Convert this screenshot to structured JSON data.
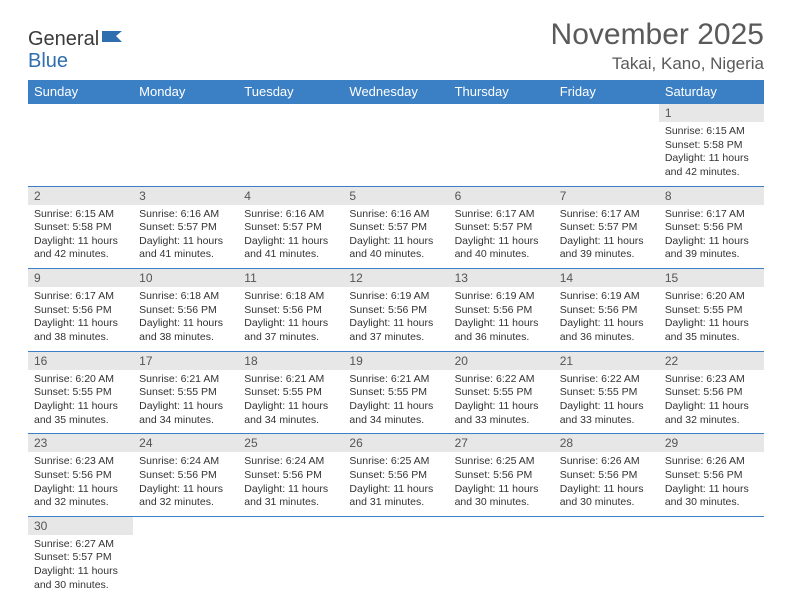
{
  "brand": {
    "part1": "General",
    "part2": "Blue"
  },
  "title": "November 2025",
  "location": "Takai, Kano, Nigeria",
  "colors": {
    "header_bg": "#3b7fc4",
    "header_text": "#ffffff",
    "daynum_bg": "#e7e7e7",
    "daynum_text": "#555555",
    "border": "#3b7fc4",
    "body_text": "#333333",
    "title_text": "#5a5a5a"
  },
  "weekdays": [
    "Sunday",
    "Monday",
    "Tuesday",
    "Wednesday",
    "Thursday",
    "Friday",
    "Saturday"
  ],
  "weeks": [
    [
      null,
      null,
      null,
      null,
      null,
      null,
      {
        "n": "1",
        "sunrise": "6:15 AM",
        "sunset": "5:58 PM",
        "dh": "11",
        "dm": "42"
      }
    ],
    [
      {
        "n": "2",
        "sunrise": "6:15 AM",
        "sunset": "5:58 PM",
        "dh": "11",
        "dm": "42"
      },
      {
        "n": "3",
        "sunrise": "6:16 AM",
        "sunset": "5:57 PM",
        "dh": "11",
        "dm": "41"
      },
      {
        "n": "4",
        "sunrise": "6:16 AM",
        "sunset": "5:57 PM",
        "dh": "11",
        "dm": "41"
      },
      {
        "n": "5",
        "sunrise": "6:16 AM",
        "sunset": "5:57 PM",
        "dh": "11",
        "dm": "40"
      },
      {
        "n": "6",
        "sunrise": "6:17 AM",
        "sunset": "5:57 PM",
        "dh": "11",
        "dm": "40"
      },
      {
        "n": "7",
        "sunrise": "6:17 AM",
        "sunset": "5:57 PM",
        "dh": "11",
        "dm": "39"
      },
      {
        "n": "8",
        "sunrise": "6:17 AM",
        "sunset": "5:56 PM",
        "dh": "11",
        "dm": "39"
      }
    ],
    [
      {
        "n": "9",
        "sunrise": "6:17 AM",
        "sunset": "5:56 PM",
        "dh": "11",
        "dm": "38"
      },
      {
        "n": "10",
        "sunrise": "6:18 AM",
        "sunset": "5:56 PM",
        "dh": "11",
        "dm": "38"
      },
      {
        "n": "11",
        "sunrise": "6:18 AM",
        "sunset": "5:56 PM",
        "dh": "11",
        "dm": "37"
      },
      {
        "n": "12",
        "sunrise": "6:19 AM",
        "sunset": "5:56 PM",
        "dh": "11",
        "dm": "37"
      },
      {
        "n": "13",
        "sunrise": "6:19 AM",
        "sunset": "5:56 PM",
        "dh": "11",
        "dm": "36"
      },
      {
        "n": "14",
        "sunrise": "6:19 AM",
        "sunset": "5:56 PM",
        "dh": "11",
        "dm": "36"
      },
      {
        "n": "15",
        "sunrise": "6:20 AM",
        "sunset": "5:55 PM",
        "dh": "11",
        "dm": "35"
      }
    ],
    [
      {
        "n": "16",
        "sunrise": "6:20 AM",
        "sunset": "5:55 PM",
        "dh": "11",
        "dm": "35"
      },
      {
        "n": "17",
        "sunrise": "6:21 AM",
        "sunset": "5:55 PM",
        "dh": "11",
        "dm": "34"
      },
      {
        "n": "18",
        "sunrise": "6:21 AM",
        "sunset": "5:55 PM",
        "dh": "11",
        "dm": "34"
      },
      {
        "n": "19",
        "sunrise": "6:21 AM",
        "sunset": "5:55 PM",
        "dh": "11",
        "dm": "34"
      },
      {
        "n": "20",
        "sunrise": "6:22 AM",
        "sunset": "5:55 PM",
        "dh": "11",
        "dm": "33"
      },
      {
        "n": "21",
        "sunrise": "6:22 AM",
        "sunset": "5:55 PM",
        "dh": "11",
        "dm": "33"
      },
      {
        "n": "22",
        "sunrise": "6:23 AM",
        "sunset": "5:56 PM",
        "dh": "11",
        "dm": "32"
      }
    ],
    [
      {
        "n": "23",
        "sunrise": "6:23 AM",
        "sunset": "5:56 PM",
        "dh": "11",
        "dm": "32"
      },
      {
        "n": "24",
        "sunrise": "6:24 AM",
        "sunset": "5:56 PM",
        "dh": "11",
        "dm": "32"
      },
      {
        "n": "25",
        "sunrise": "6:24 AM",
        "sunset": "5:56 PM",
        "dh": "11",
        "dm": "31"
      },
      {
        "n": "26",
        "sunrise": "6:25 AM",
        "sunset": "5:56 PM",
        "dh": "11",
        "dm": "31"
      },
      {
        "n": "27",
        "sunrise": "6:25 AM",
        "sunset": "5:56 PM",
        "dh": "11",
        "dm": "30"
      },
      {
        "n": "28",
        "sunrise": "6:26 AM",
        "sunset": "5:56 PM",
        "dh": "11",
        "dm": "30"
      },
      {
        "n": "29",
        "sunrise": "6:26 AM",
        "sunset": "5:56 PM",
        "dh": "11",
        "dm": "30"
      }
    ],
    [
      {
        "n": "30",
        "sunrise": "6:27 AM",
        "sunset": "5:57 PM",
        "dh": "11",
        "dm": "30"
      },
      null,
      null,
      null,
      null,
      null,
      null
    ]
  ],
  "labels": {
    "sunrise": "Sunrise: ",
    "sunset": "Sunset: ",
    "daylight_pre": "Daylight: ",
    "hours_mid": " hours and ",
    "minutes_post": " minutes."
  }
}
